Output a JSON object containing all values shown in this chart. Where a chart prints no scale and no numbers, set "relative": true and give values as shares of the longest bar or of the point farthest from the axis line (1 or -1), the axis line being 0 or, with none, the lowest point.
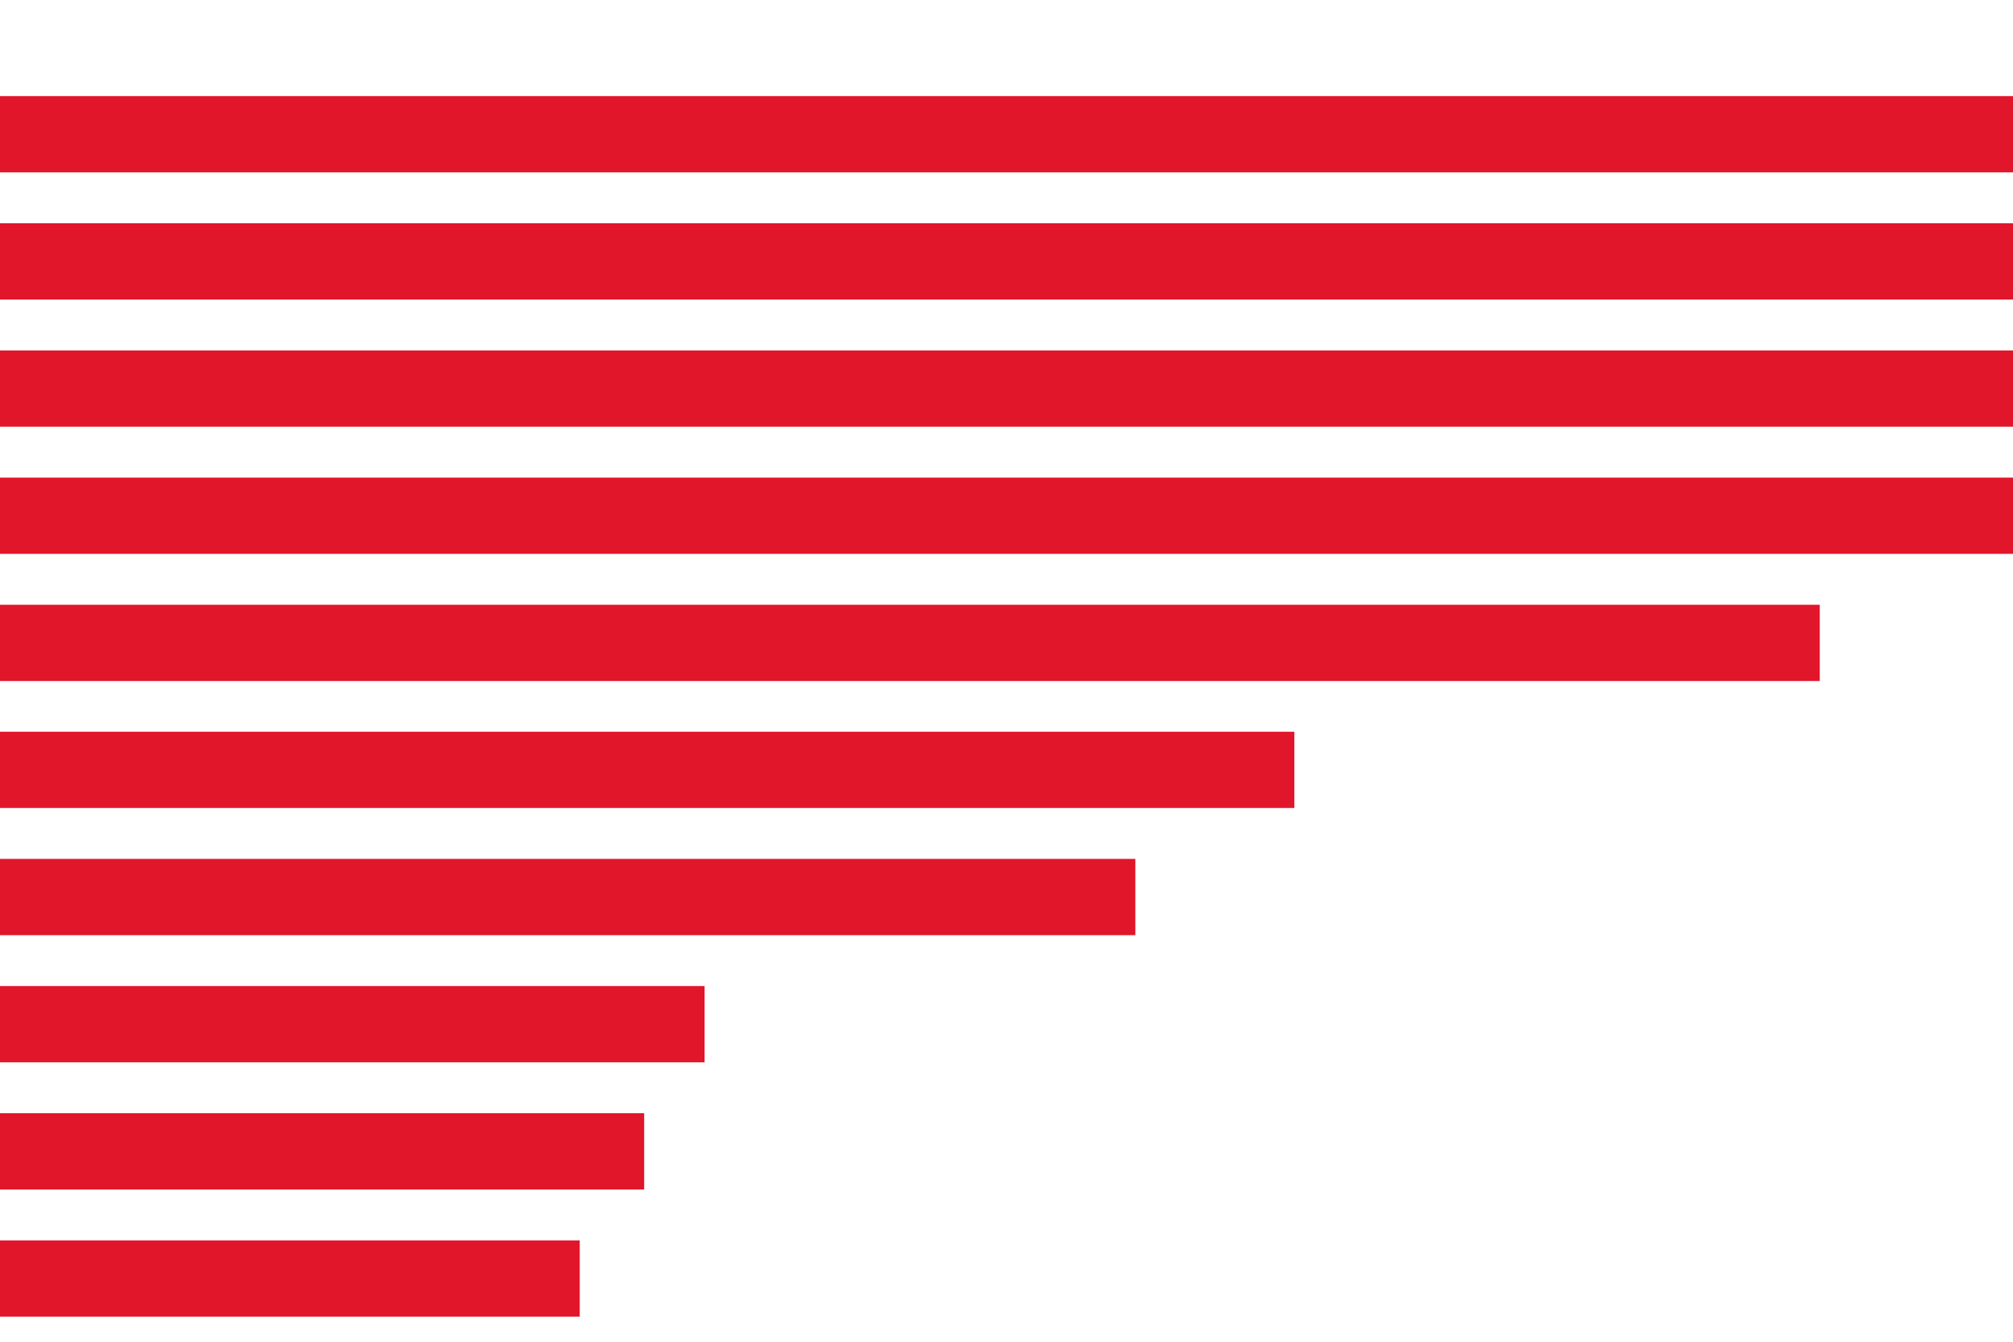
{
  "chart_data": {
    "type": "bar",
    "orientation": "horizontal",
    "relative": true,
    "categories": [
      null,
      null,
      null,
      null,
      null,
      null,
      null,
      null,
      null,
      null
    ],
    "values": [
      1,
      1,
      1,
      1,
      0.904,
      0.643,
      0.564,
      0.35,
      0.32,
      0.288
    ],
    "color": "#e1162b"
  }
}
